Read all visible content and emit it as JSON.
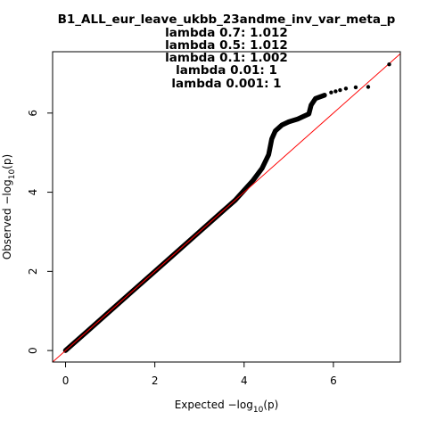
{
  "chart_data": {
    "type": "scatter",
    "title": "B1_ALL_eur_leave_ukbb_23andme_inv_var_meta_p",
    "subtitle_lines": [
      "lambda 0.7: 1.012",
      "lambda 0.5: 1.012",
      "lambda 0.1: 1.002",
      "lambda 0.01: 1",
      "lambda 0.001: 1"
    ],
    "xlabel": "Expected  −log10(p)",
    "ylabel": "Observed  −log10(p)",
    "xlabel_parts": {
      "prefix": "Expected  −log",
      "sub": "10",
      "suffix": "(p)"
    },
    "ylabel_parts": {
      "prefix": "Observed  −log",
      "sub": "10",
      "suffix": "(p)"
    },
    "xlim": [
      -0.29,
      7.5
    ],
    "ylim": [
      -0.29,
      7.55
    ],
    "x_ticks": [
      0,
      2,
      4,
      6
    ],
    "y_ticks": [
      0,
      2,
      4,
      6
    ],
    "x_tick_labels": [
      "0",
      "2",
      "4",
      "6"
    ],
    "y_tick_labels": [
      "0",
      "2",
      "4",
      "6"
    ],
    "grid": false,
    "reference_line": {
      "type": "y=x",
      "color": "#ff0000"
    },
    "point_color": "#000000",
    "series": [
      {
        "kind": "dense_curve",
        "points": [
          [
            0.0,
            0.0
          ],
          [
            0.5,
            0.5
          ],
          [
            1.0,
            1.0
          ],
          [
            1.5,
            1.5
          ],
          [
            2.0,
            2.0
          ],
          [
            2.5,
            2.5
          ],
          [
            3.0,
            3.0
          ],
          [
            3.5,
            3.5
          ],
          [
            3.8,
            3.8
          ],
          [
            4.0,
            4.05
          ],
          [
            4.2,
            4.3
          ],
          [
            4.4,
            4.6
          ],
          [
            4.55,
            4.95
          ],
          [
            4.62,
            5.35
          ],
          [
            4.7,
            5.55
          ],
          [
            4.85,
            5.7
          ],
          [
            5.0,
            5.78
          ],
          [
            5.2,
            5.85
          ],
          [
            5.45,
            5.98
          ],
          [
            5.5,
            6.2
          ],
          [
            5.6,
            6.37
          ],
          [
            5.8,
            6.45
          ]
        ]
      },
      {
        "kind": "tail_points",
        "points": [
          [
            5.95,
            6.52
          ],
          [
            6.05,
            6.55
          ],
          [
            6.15,
            6.58
          ],
          [
            6.28,
            6.62
          ],
          [
            6.5,
            6.65
          ],
          [
            6.78,
            6.66
          ],
          [
            7.25,
            7.23
          ]
        ]
      }
    ]
  }
}
